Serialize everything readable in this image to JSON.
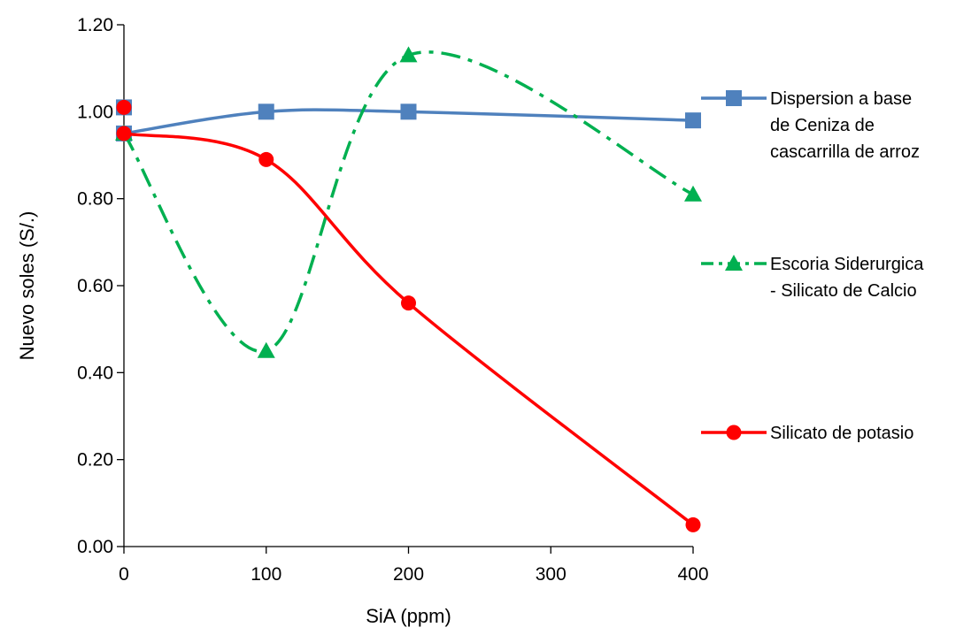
{
  "chart_data": {
    "type": "line",
    "xlabel": "SiA (ppm)",
    "ylabel": "Nuevo soles (S/.)",
    "xlim": [
      0,
      400
    ],
    "ylim": [
      0,
      1.2
    ],
    "xticks": [
      "0",
      "100",
      "200",
      "300",
      "400"
    ],
    "yticks": [
      "0.00",
      "0.20",
      "0.40",
      "0.60",
      "0.80",
      "1.00",
      "1.20"
    ],
    "grid": false,
    "legend_position": "right",
    "series": [
      {
        "name": "Dispersion a base de Ceniza de cascarrilla de arroz",
        "name_lines": [
          "Dispersion a base",
          "de Ceniza de",
          "cascarrilla de arroz"
        ],
        "x": [
          0,
          0,
          100,
          200,
          400
        ],
        "y": [
          1.01,
          0.95,
          1.0,
          1.0,
          0.98
        ],
        "color": "#4F81BD",
        "marker": "square",
        "dash": "solid"
      },
      {
        "name": "Escoria Siderurgica - Silicato de Calcio",
        "name_lines": [
          "Escoria Siderurgica",
          "- Silicato de Calcio"
        ],
        "x": [
          0,
          100,
          200,
          400
        ],
        "y": [
          0.95,
          0.45,
          1.13,
          0.81
        ],
        "color": "#00B050",
        "marker": "triangle",
        "dash": "dashdot"
      },
      {
        "name": "Silicato de potasio",
        "name_lines": [
          "Silicato de potasio"
        ],
        "x": [
          0,
          0,
          100,
          200,
          400
        ],
        "y": [
          1.01,
          0.95,
          0.89,
          0.56,
          0.05
        ],
        "color": "#FF0000",
        "marker": "circle",
        "dash": "solid"
      }
    ]
  }
}
